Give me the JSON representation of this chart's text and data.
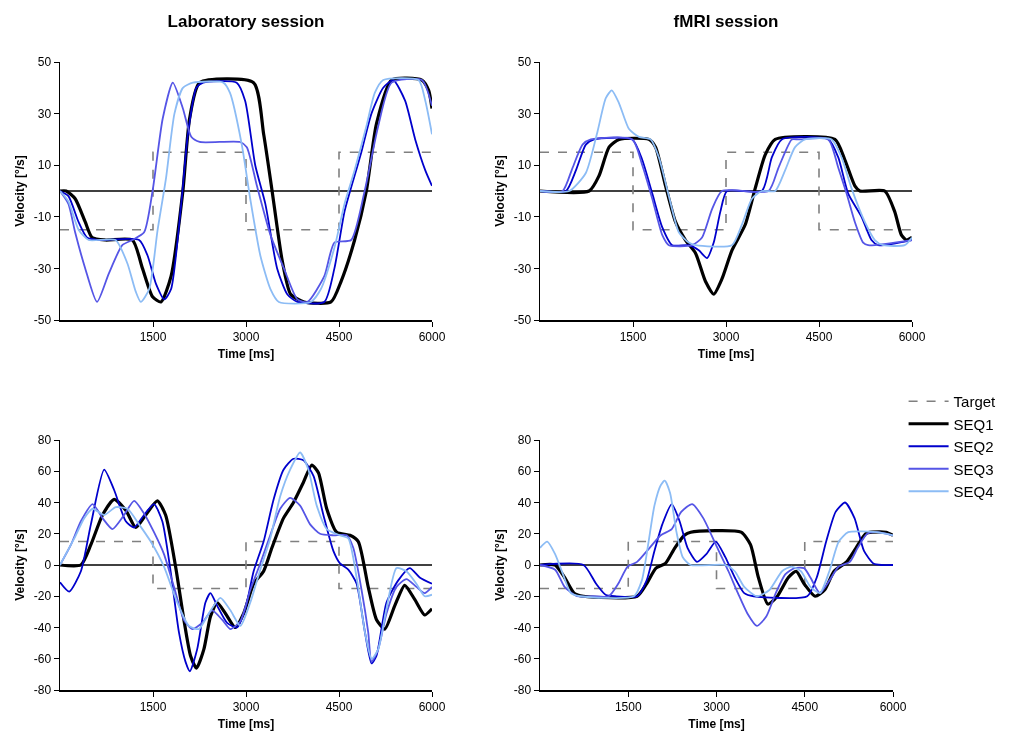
{
  "chart_data": [
    {
      "type": "line",
      "title": "Laboratory session",
      "xlabel": "Time [ms]",
      "ylabel": "Velocity [°/s]",
      "xlim": [
        0,
        6000
      ],
      "xticks": [
        1500,
        3000,
        4500,
        6000
      ],
      "ylim": [
        -50,
        50
      ],
      "yticks": [
        -50,
        -30,
        -10,
        10,
        30,
        50
      ],
      "grid": false,
      "legend": false,
      "marker": "none",
      "line_style": "solid",
      "ref_lines": [
        {
          "axis": "y",
          "value": 0,
          "color": "#000000"
        }
      ],
      "series": [
        {
          "type": "step",
          "line_style": "dashed",
          "color": "#808080",
          "x": [
            0,
            1500,
            3000,
            4500,
            6000
          ],
          "values": [
            -15,
            15,
            -15,
            15,
            15
          ]
        },
        {
          "color": "#000000",
          "x": [
            0,
            100,
            245,
            407,
            516,
            733,
            1167,
            1330,
            1493,
            1629,
            1792,
            1982,
            2090,
            2253,
            3122,
            3285,
            3421,
            3584,
            3720,
            3937,
            4371,
            4534,
            4752,
            4941,
            5104,
            5349,
            5837,
            5946,
            6000
          ],
          "values": [
            0,
            0,
            -3,
            -12,
            -18,
            -19,
            -19,
            -30,
            -41,
            -43,
            -33,
            0,
            28,
            42,
            42,
            22,
            0,
            -27,
            -40,
            -43,
            -43,
            -35,
            -19,
            0,
            26,
            43,
            43,
            39,
            32
          ]
        },
        {
          "color": "#0000cc",
          "x": [
            0,
            136,
            299,
            434,
            624,
            1276,
            1412,
            1548,
            1683,
            1792,
            1955,
            2063,
            2199,
            2308,
            2850,
            2986,
            3149,
            3312,
            3502,
            3665,
            3829,
            4263,
            4426,
            4589,
            4752,
            4860,
            5023,
            5213,
            5376,
            5566,
            5729,
            5892,
            6000
          ],
          "values": [
            0,
            -2,
            -12,
            -18,
            -19,
            -19,
            -25,
            -36,
            -42,
            -38,
            -5,
            22,
            40,
            42,
            42,
            35,
            10,
            -5,
            -30,
            -40,
            -43,
            -43,
            -30,
            -8,
            6,
            15,
            30,
            40,
            43,
            35,
            20,
            8,
            2
          ]
        },
        {
          "color": "#5555e6",
          "x": [
            0,
            136,
            244,
            407,
            597,
            787,
            1005,
            1167,
            1357,
            1493,
            1656,
            1819,
            1982,
            2117,
            2253,
            2905,
            3013,
            3176,
            3394,
            3611,
            3828,
            3991,
            4263,
            4426,
            4697,
            4914,
            5131,
            5349,
            5837,
            6000
          ],
          "values": [
            0,
            -5,
            -16,
            -30,
            -43,
            -32,
            -21,
            -19,
            -16,
            0,
            28,
            42,
            32,
            21,
            19,
            19,
            17,
            2,
            -17,
            -30,
            -42,
            -43,
            -33,
            -20,
            -19,
            0,
            25,
            42,
            43,
            33
          ]
        },
        {
          "color": "#8cbcf5",
          "x": [
            0,
            136,
            299,
            462,
            896,
            1086,
            1222,
            1303,
            1439,
            1575,
            1710,
            1846,
            1982,
            2144,
            2634,
            2742,
            2932,
            3068,
            3231,
            3394,
            3530,
            4045,
            4208,
            4426,
            4589,
            4752,
            4941,
            5077,
            5213,
            5783,
            5892,
            6000
          ],
          "values": [
            0,
            -4,
            -15,
            -19,
            -19,
            -28,
            -39,
            -43,
            -38,
            -15,
            5,
            30,
            40,
            42,
            42,
            38,
            18,
            -3,
            -25,
            -38,
            -43,
            -43,
            -38,
            -22,
            -5,
            8,
            25,
            38,
            43,
            43,
            35,
            22
          ]
        }
      ]
    },
    {
      "type": "line",
      "title": "fMRI session",
      "xlabel": "Time [ms]",
      "ylabel": "Velocity [°/s]",
      "xlim": [
        0,
        6000
      ],
      "xticks": [
        1500,
        3000,
        4500,
        6000
      ],
      "ylim": [
        -50,
        50
      ],
      "yticks": [
        -50,
        -30,
        -10,
        10,
        30,
        50
      ],
      "grid": false,
      "legend": false,
      "marker": "none",
      "line_style": "solid",
      "ref_lines": [
        {
          "axis": "y",
          "value": 0,
          "color": "#000000"
        }
      ],
      "series": [
        {
          "type": "step",
          "line_style": "dashed",
          "color": "#808080",
          "x": [
            0,
            1500,
            3000,
            4500,
            6000
          ],
          "values": [
            15,
            -15,
            15,
            -15,
            -15
          ]
        },
        {
          "color": "#000000",
          "x": [
            0,
            793,
            954,
            1114,
            1275,
            1757,
            1864,
            2025,
            2186,
            2346,
            2507,
            2668,
            2802,
            2936,
            3096,
            3311,
            3471,
            3632,
            3793,
            4757,
            4918,
            5078,
            5159,
            5560,
            5721,
            5828,
            5909,
            6000
          ],
          "values": [
            0,
            0,
            6,
            17,
            20,
            20,
            17,
            2,
            -12,
            -19,
            -24,
            -35,
            -40,
            -34,
            -23,
            -13,
            1,
            14,
            20,
            20,
            12,
            2,
            0,
            0,
            -8,
            -17,
            -19,
            -18
          ]
        },
        {
          "color": "#0000cc",
          "x": [
            0,
            418,
            579,
            739,
            873,
            1489,
            1650,
            1811,
            1971,
            2132,
            2400,
            2561,
            2695,
            2802,
            2909,
            3016,
            3578,
            3739,
            3900,
            4650,
            4811,
            4971,
            5186,
            5346,
            5453,
            6000
          ],
          "values": [
            0,
            0,
            8,
            18,
            20,
            20,
            12,
            -1,
            -14,
            -21,
            -21,
            -23,
            -26,
            -20,
            -8,
            0,
            0,
            13,
            20,
            20,
            13,
            -1,
            -10,
            -19,
            -21,
            -19
          ]
        },
        {
          "color": "#5555e6",
          "x": [
            0,
            364,
            525,
            686,
            820,
            1489,
            1650,
            1811,
            1971,
            2079,
            2454,
            2614,
            2775,
            2936,
            3686,
            3846,
            4061,
            4168,
            4650,
            4811,
            4945,
            5078,
            5212,
            5293,
            6000
          ],
          "values": [
            0,
            0,
            9,
            18,
            20,
            20,
            10,
            -3,
            -17,
            -21,
            -21,
            -18,
            -7,
            0,
            0,
            9,
            20,
            20,
            20,
            9,
            -1,
            -12,
            -20,
            -21,
            -19
          ]
        },
        {
          "color": "#8cbcf5",
          "x": [
            0,
            471,
            739,
            927,
            1061,
            1157,
            1275,
            1436,
            1596,
            1784,
            1918,
            2079,
            2239,
            2400,
            2507,
            3096,
            3257,
            3418,
            3578,
            3793,
            3953,
            4114,
            4275,
            4704,
            4864,
            5025,
            5239,
            5400,
            5534,
            5882,
            6000
          ],
          "values": [
            0,
            0,
            7,
            23,
            36,
            39,
            34,
            24,
            21,
            20,
            13,
            -2,
            -16,
            -20,
            -21,
            -21,
            -13,
            -3,
            0,
            0,
            8,
            17,
            20,
            20,
            13,
            1,
            -12,
            -19,
            -21,
            -21,
            -18
          ]
        }
      ]
    },
    {
      "type": "line",
      "xlabel": "Time [ms]",
      "ylabel": "Velocity [°/s]",
      "xlim": [
        0,
        6000
      ],
      "xticks": [
        1500,
        3000,
        4500,
        6000
      ],
      "ylim": [
        -80,
        80
      ],
      "yticks": [
        -80,
        -60,
        -40,
        -20,
        0,
        20,
        40,
        60,
        80
      ],
      "grid": false,
      "legend": false,
      "marker": "none",
      "line_style": "solid",
      "ref_lines": [
        {
          "axis": "y",
          "value": 0,
          "color": "#000000"
        }
      ],
      "series": [
        {
          "type": "step",
          "line_style": "dashed",
          "color": "#808080",
          "x": [
            0,
            1500,
            3000,
            4500,
            6000
          ],
          "values": [
            15,
            -15,
            15,
            -15,
            -15
          ]
        },
        {
          "color": "#000000",
          "x": [
            0,
            337,
            498,
            686,
            873,
            1061,
            1221,
            1382,
            1570,
            1703,
            1864,
            1998,
            2105,
            2202,
            2320,
            2427,
            2534,
            2668,
            2828,
            2962,
            3123,
            3284,
            3418,
            3605,
            3766,
            3927,
            4061,
            4168,
            4302,
            4462,
            4677,
            4811,
            4971,
            5105,
            5239,
            5400,
            5560,
            5721,
            5882,
            6000
          ],
          "values": [
            0,
            0,
            13,
            32,
            42,
            35,
            24,
            32,
            41,
            32,
            -1,
            -35,
            -58,
            -66,
            -54,
            -33,
            -24,
            -31,
            -40,
            -31,
            -12,
            -4,
            11,
            30,
            40,
            53,
            64,
            59,
            36,
            21,
            19,
            15,
            -14,
            -35,
            -41,
            -26,
            -13,
            -22,
            -32,
            -28
          ]
        },
        {
          "color": "#0000cc",
          "x": [
            0,
            150,
            337,
            498,
            712,
            873,
            1061,
            1195,
            1355,
            1516,
            1650,
            1784,
            1918,
            2025,
            2095,
            2212,
            2346,
            2427,
            2534,
            2695,
            2855,
            2989,
            3123,
            3284,
            3445,
            3605,
            3766,
            3927,
            4088,
            4248,
            4409,
            4516,
            4650,
            4784,
            4918,
            5025,
            5105,
            5266,
            5453,
            5641,
            5802,
            6000
          ],
          "values": [
            -11,
            -17,
            -4,
            26,
            61,
            48,
            28,
            24,
            32,
            39,
            28,
            -4,
            -43,
            -62,
            -68,
            -54,
            -24,
            -18,
            -26,
            -37,
            -40,
            -28,
            -4,
            15,
            42,
            61,
            68,
            67,
            57,
            32,
            9,
            1,
            -3,
            -12,
            -43,
            -63,
            -58,
            -24,
            -10,
            -2,
            -8,
            -12
          ]
        },
        {
          "color": "#5555e6",
          "x": [
            0,
            177,
            337,
            525,
            686,
            846,
            1034,
            1195,
            1355,
            1516,
            1677,
            1838,
            1998,
            2132,
            2293,
            2454,
            2614,
            2748,
            2909,
            3069,
            3230,
            3391,
            3552,
            3712,
            3873,
            4034,
            4195,
            4409,
            4623,
            4730,
            4864,
            4971,
            5025,
            5132,
            5266,
            5427,
            5587,
            5748,
            5882,
            6000
          ],
          "values": [
            0,
            13,
            28,
            39,
            30,
            23,
            32,
            41,
            33,
            21,
            7,
            -14,
            -35,
            -41,
            -37,
            -29,
            -35,
            -41,
            -36,
            -16,
            1,
            19,
            36,
            43,
            38,
            26,
            20,
            19,
            19,
            11,
            -16,
            -43,
            -62,
            -54,
            -31,
            -14,
            -9,
            -14,
            -18,
            -14
          ]
        },
        {
          "color": "#8cbcf5",
          "x": [
            0,
            230,
            391,
            525,
            712,
            900,
            1088,
            1275,
            1463,
            1677,
            1891,
            2079,
            2239,
            2400,
            2587,
            2748,
            2909,
            3069,
            3230,
            3391,
            3552,
            3712,
            3873,
            4007,
            4141,
            4302,
            4516,
            4650,
            4784,
            4918,
            5025,
            5132,
            5266,
            5427,
            5587,
            5748,
            5882,
            6000
          ],
          "values": [
            0,
            17,
            30,
            36,
            32,
            37,
            36,
            26,
            15,
            -1,
            -24,
            -39,
            -41,
            -31,
            -21,
            -29,
            -39,
            -24,
            -3,
            17,
            44,
            61,
            72,
            61,
            38,
            23,
            19,
            17,
            -8,
            -43,
            -60,
            -54,
            -28,
            -2,
            -4,
            -12,
            -20,
            -19
          ]
        }
      ]
    },
    {
      "type": "line",
      "xlabel": "Time [ms]",
      "ylabel": "Velocity [°/s]",
      "xlim": [
        0,
        6000
      ],
      "xticks": [
        1500,
        3000,
        4500,
        6000
      ],
      "ylim": [
        -80,
        80
      ],
      "yticks": [
        -80,
        -60,
        -40,
        -20,
        0,
        20,
        40,
        60,
        80
      ],
      "grid": false,
      "legend": "top right",
      "marker": "none",
      "line_style": "solid",
      "ref_lines": [
        {
          "axis": "y",
          "value": 0,
          "color": "#000000"
        }
      ],
      "series": [
        {
          "name": "Target",
          "type": "step",
          "line_style": "dashed",
          "color": "#808080",
          "x": [
            0,
            1500,
            3000,
            4500,
            6000
          ],
          "values": [
            -15,
            15,
            -15,
            15,
            15
          ]
        },
        {
          "name": "SEQ1",
          "color": "#000000",
          "x": [
            0,
            257,
            418,
            579,
            739,
            1650,
            1811,
            1971,
            2132,
            2293,
            2454,
            2561,
            3418,
            3578,
            3712,
            3873,
            4034,
            4221,
            4355,
            4489,
            4677,
            4837,
            4998,
            5212,
            5373,
            5534,
            5641,
            5882,
            6000
          ],
          "values": [
            0,
            0,
            -8,
            -18,
            -20,
            -20,
            -12,
            -2,
            1,
            11,
            19,
            21,
            21,
            13,
            -8,
            -25,
            -20,
            -8,
            -4,
            -12,
            -20,
            -16,
            -4,
            2,
            11,
            20,
            21,
            21,
            19
          ]
        },
        {
          "name": "SEQ2",
          "color": "#0000cc",
          "x": [
            0,
            739,
            954,
            1114,
            1275,
            1650,
            1811,
            1945,
            2079,
            2239,
            2373,
            2507,
            2668,
            2828,
            2989,
            3150,
            3311,
            3471,
            3632,
            4543,
            4704,
            4864,
            5025,
            5186,
            5346,
            5507,
            5668,
            5802,
            6000
          ],
          "values": [
            0,
            0,
            -12,
            -19,
            -20,
            -20,
            -10,
            9,
            26,
            39,
            28,
            11,
            2,
            7,
            15,
            5,
            -8,
            -18,
            -20,
            -20,
            -8,
            15,
            34,
            40,
            30,
            9,
            1,
            0,
            0
          ]
        },
        {
          "name": "SEQ3",
          "color": "#5555e6",
          "x": [
            0,
            257,
            418,
            632,
            900,
            1168,
            1329,
            1489,
            1650,
            1864,
            2052,
            2239,
            2400,
            2587,
            2775,
            2989,
            3203,
            3364,
            3525,
            3686,
            3846,
            4007,
            4168,
            4328,
            4489,
            4596,
            4757,
            4918,
            5078,
            5266,
            5400,
            5561,
            5721,
            6000
          ],
          "values": [
            0,
            -3,
            -14,
            -20,
            -20,
            -20,
            -12,
            -1,
            2,
            11,
            19,
            23,
            34,
            39,
            30,
            13,
            -4,
            -18,
            -31,
            -39,
            -33,
            -18,
            -6,
            -2,
            -2,
            -8,
            -18,
            -10,
            -1,
            2,
            11,
            20,
            21,
            19
          ]
        },
        {
          "name": "SEQ4",
          "color": "#8cbcf5",
          "x": [
            0,
            123,
            257,
            391,
            525,
            686,
            1596,
            1730,
            1838,
            1945,
            2052,
            2121,
            2212,
            2320,
            2427,
            2561,
            3150,
            3311,
            3471,
            3686,
            3900,
            4114,
            4275,
            4436,
            4596,
            4757,
            4918,
            5078,
            5239,
            5721,
            6000
          ],
          "values": [
            11,
            15,
            7,
            -6,
            -18,
            -20,
            -20,
            -10,
            13,
            38,
            51,
            54,
            46,
            21,
            5,
            0,
            0,
            -4,
            -14,
            -20,
            -16,
            -4,
            -1,
            -4,
            -14,
            -18,
            -4,
            15,
            21,
            21,
            19
          ]
        }
      ]
    }
  ]
}
